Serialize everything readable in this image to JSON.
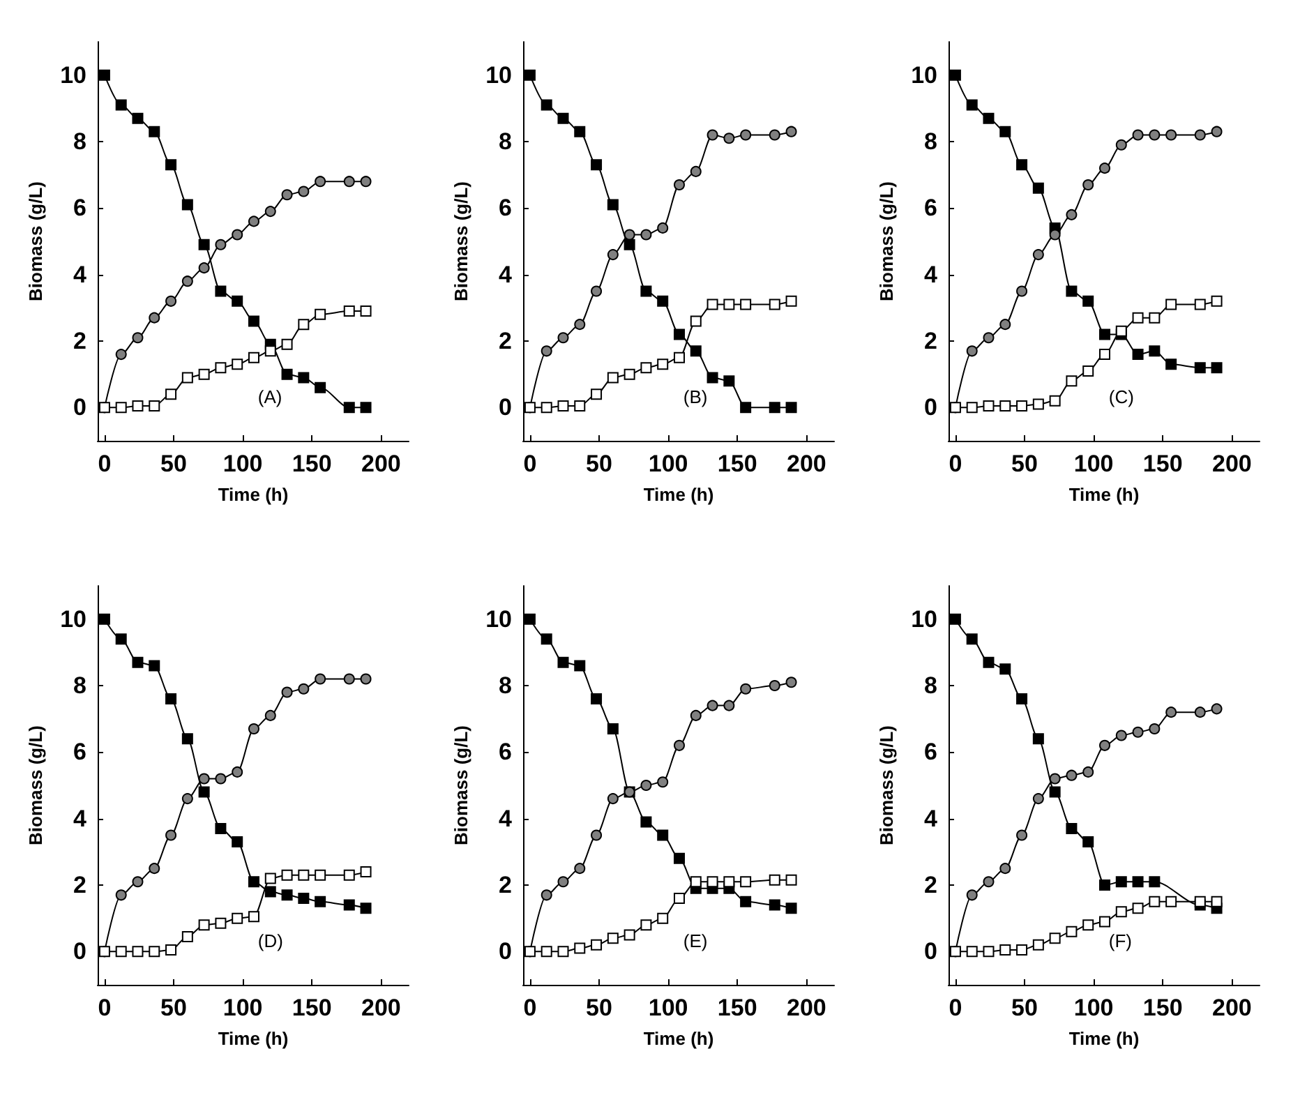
{
  "chart_data": [
    {
      "type": "line",
      "xlabel": "Time (h)",
      "ylabel": "Biomass (g/L)",
      "annotations": [
        "(A)"
      ],
      "xlim": [
        -5,
        220
      ],
      "xticks": [
        0,
        50,
        100,
        150,
        200
      ],
      "ylim": [
        -1,
        11
      ],
      "yticks": [
        0,
        2,
        4,
        6,
        8,
        10
      ],
      "grid": false,
      "line_style": "solid",
      "x": [
        0,
        12,
        24,
        36,
        48,
        60,
        72,
        84,
        96,
        108,
        120,
        132,
        144,
        156,
        177,
        189
      ],
      "series": [
        {
          "color": "#000000",
          "marker": "square",
          "values": [
            10,
            9.1,
            8.7,
            8.3,
            7.3,
            6.1,
            4.9,
            3.5,
            3.2,
            2.6,
            1.9,
            1.0,
            0.9,
            0.6,
            0,
            0
          ]
        },
        {
          "color": "#808080",
          "marker": "circle",
          "values": [
            0,
            1.6,
            2.1,
            2.7,
            3.2,
            3.8,
            4.2,
            4.9,
            5.2,
            5.6,
            5.9,
            6.4,
            6.5,
            6.8,
            6.8,
            6.8
          ]
        },
        {
          "color": "#ffffff",
          "marker": "square",
          "values": [
            0,
            0,
            0.05,
            0.05,
            0.4,
            0.9,
            1.0,
            1.2,
            1.3,
            1.5,
            1.7,
            1.9,
            2.5,
            2.8,
            2.9,
            2.9
          ]
        }
      ]
    },
    {
      "type": "line",
      "xlabel": "Time (h)",
      "ylabel": "Biomass (g/L)",
      "annotations": [
        "(B)"
      ],
      "xlim": [
        -5,
        220
      ],
      "xticks": [
        0,
        50,
        100,
        150,
        200
      ],
      "ylim": [
        -1,
        11
      ],
      "yticks": [
        0,
        2,
        4,
        6,
        8,
        10
      ],
      "grid": false,
      "line_style": "solid",
      "x": [
        0,
        12,
        24,
        36,
        48,
        60,
        72,
        84,
        96,
        108,
        120,
        132,
        144,
        156,
        177,
        189
      ],
      "series": [
        {
          "color": "#000000",
          "marker": "square",
          "values": [
            10,
            9.1,
            8.7,
            8.3,
            7.3,
            6.1,
            4.9,
            3.5,
            3.2,
            2.2,
            1.7,
            0.9,
            0.8,
            0,
            0,
            0
          ]
        },
        {
          "color": "#808080",
          "marker": "circle",
          "values": [
            0,
            1.7,
            2.1,
            2.5,
            3.5,
            4.6,
            5.2,
            5.2,
            5.4,
            6.7,
            7.1,
            8.2,
            8.1,
            8.2,
            8.2,
            8.3
          ]
        },
        {
          "color": "#ffffff",
          "marker": "square",
          "values": [
            0,
            0,
            0.05,
            0.05,
            0.4,
            0.9,
            1.0,
            1.2,
            1.3,
            1.5,
            2.6,
            3.1,
            3.1,
            3.1,
            3.1,
            3.2
          ]
        }
      ]
    },
    {
      "type": "line",
      "xlabel": "Time (h)",
      "ylabel": "Biomass (g/L)",
      "annotations": [
        "(C)"
      ],
      "xlim": [
        -5,
        220
      ],
      "xticks": [
        0,
        50,
        100,
        150,
        200
      ],
      "ylim": [
        -1,
        11
      ],
      "yticks": [
        0,
        2,
        4,
        6,
        8,
        10
      ],
      "grid": false,
      "line_style": "solid",
      "x": [
        0,
        12,
        24,
        36,
        48,
        60,
        72,
        84,
        96,
        108,
        120,
        132,
        144,
        156,
        177,
        189
      ],
      "series": [
        {
          "color": "#000000",
          "marker": "square",
          "values": [
            10,
            9.1,
            8.7,
            8.3,
            7.3,
            6.6,
            5.4,
            3.5,
            3.2,
            2.2,
            2.2,
            1.6,
            1.7,
            1.3,
            1.2,
            1.2
          ]
        },
        {
          "color": "#808080",
          "marker": "circle",
          "values": [
            0,
            1.7,
            2.1,
            2.5,
            3.5,
            4.6,
            5.2,
            5.8,
            6.7,
            7.2,
            7.9,
            8.2,
            8.2,
            8.2,
            8.2,
            8.3
          ]
        },
        {
          "color": "#ffffff",
          "marker": "square",
          "values": [
            0,
            0,
            0.05,
            0.05,
            0.05,
            0.1,
            0.2,
            0.8,
            1.1,
            1.6,
            2.3,
            2.7,
            2.7,
            3.1,
            3.1,
            3.2
          ]
        }
      ]
    },
    {
      "type": "line",
      "xlabel": "Time (h)",
      "ylabel": "Biomass (g/L)",
      "annotations": [
        "(D)"
      ],
      "xlim": [
        -5,
        220
      ],
      "xticks": [
        0,
        50,
        100,
        150,
        200
      ],
      "ylim": [
        -1,
        11
      ],
      "yticks": [
        0,
        2,
        4,
        6,
        8,
        10
      ],
      "grid": false,
      "line_style": "solid",
      "x": [
        0,
        12,
        24,
        36,
        48,
        60,
        72,
        84,
        96,
        108,
        120,
        132,
        144,
        156,
        177,
        189
      ],
      "series": [
        {
          "color": "#000000",
          "marker": "square",
          "values": [
            10,
            9.4,
            8.7,
            8.6,
            7.6,
            6.4,
            4.8,
            3.7,
            3.3,
            2.1,
            1.8,
            1.7,
            1.6,
            1.5,
            1.4,
            1.3
          ]
        },
        {
          "color": "#808080",
          "marker": "circle",
          "values": [
            0,
            1.7,
            2.1,
            2.5,
            3.5,
            4.6,
            5.2,
            5.2,
            5.4,
            6.7,
            7.1,
            7.8,
            7.9,
            8.2,
            8.2,
            8.2
          ]
        },
        {
          "color": "#ffffff",
          "marker": "square",
          "values": [
            0,
            0,
            0,
            0,
            0.05,
            0.45,
            0.8,
            0.85,
            1.0,
            1.05,
            2.2,
            2.3,
            2.3,
            2.3,
            2.3,
            2.4
          ]
        }
      ]
    },
    {
      "type": "line",
      "xlabel": "Time (h)",
      "ylabel": "Biomass (g/L)",
      "annotations": [
        "(E)"
      ],
      "xlim": [
        -5,
        220
      ],
      "xticks": [
        0,
        50,
        100,
        150,
        200
      ],
      "ylim": [
        -1,
        11
      ],
      "yticks": [
        0,
        2,
        4,
        6,
        8,
        10
      ],
      "grid": false,
      "line_style": "solid",
      "x": [
        0,
        12,
        24,
        36,
        48,
        60,
        72,
        84,
        96,
        108,
        120,
        132,
        144,
        156,
        177,
        189
      ],
      "series": [
        {
          "color": "#000000",
          "marker": "square",
          "values": [
            10,
            9.4,
            8.7,
            8.6,
            7.6,
            6.7,
            4.8,
            3.9,
            3.5,
            2.8,
            1.9,
            1.9,
            1.9,
            1.5,
            1.4,
            1.3
          ]
        },
        {
          "color": "#808080",
          "marker": "circle",
          "values": [
            0,
            1.7,
            2.1,
            2.5,
            3.5,
            4.6,
            4.8,
            5.0,
            5.1,
            6.2,
            7.1,
            7.4,
            7.4,
            7.9,
            8.0,
            8.1
          ]
        },
        {
          "color": "#ffffff",
          "marker": "square",
          "values": [
            0,
            0,
            0,
            0.1,
            0.2,
            0.4,
            0.5,
            0.8,
            1.0,
            1.6,
            2.1,
            2.1,
            2.1,
            2.1,
            2.15,
            2.15
          ]
        }
      ]
    },
    {
      "type": "line",
      "xlabel": "Time (h)",
      "ylabel": "Biomass (g/L)",
      "annotations": [
        "(F)"
      ],
      "xlim": [
        -5,
        220
      ],
      "xticks": [
        0,
        50,
        100,
        150,
        200
      ],
      "ylim": [
        -1,
        11
      ],
      "yticks": [
        0,
        2,
        4,
        6,
        8,
        10
      ],
      "grid": false,
      "line_style": "solid",
      "x": [
        0,
        12,
        24,
        36,
        48,
        60,
        72,
        84,
        96,
        108,
        120,
        132,
        144,
        156,
        177,
        189
      ],
      "series": [
        {
          "color": "#000000",
          "marker": "square",
          "values": [
            10,
            9.4,
            8.7,
            8.5,
            7.6,
            6.4,
            4.8,
            3.7,
            3.3,
            2.0,
            2.1,
            2.1,
            2.1,
            null,
            1.4,
            1.3
          ]
        },
        {
          "color": "#808080",
          "marker": "circle",
          "values": [
            0,
            1.7,
            2.1,
            2.5,
            3.5,
            4.6,
            5.2,
            5.3,
            5.4,
            6.2,
            6.5,
            6.6,
            6.7,
            7.2,
            7.2,
            7.3
          ]
        },
        {
          "color": "#ffffff",
          "marker": "square",
          "values": [
            0,
            0,
            0,
            0.05,
            0.05,
            0.2,
            0.4,
            0.6,
            0.8,
            0.9,
            1.2,
            1.3,
            1.5,
            1.5,
            1.5,
            1.5
          ]
        }
      ]
    }
  ]
}
